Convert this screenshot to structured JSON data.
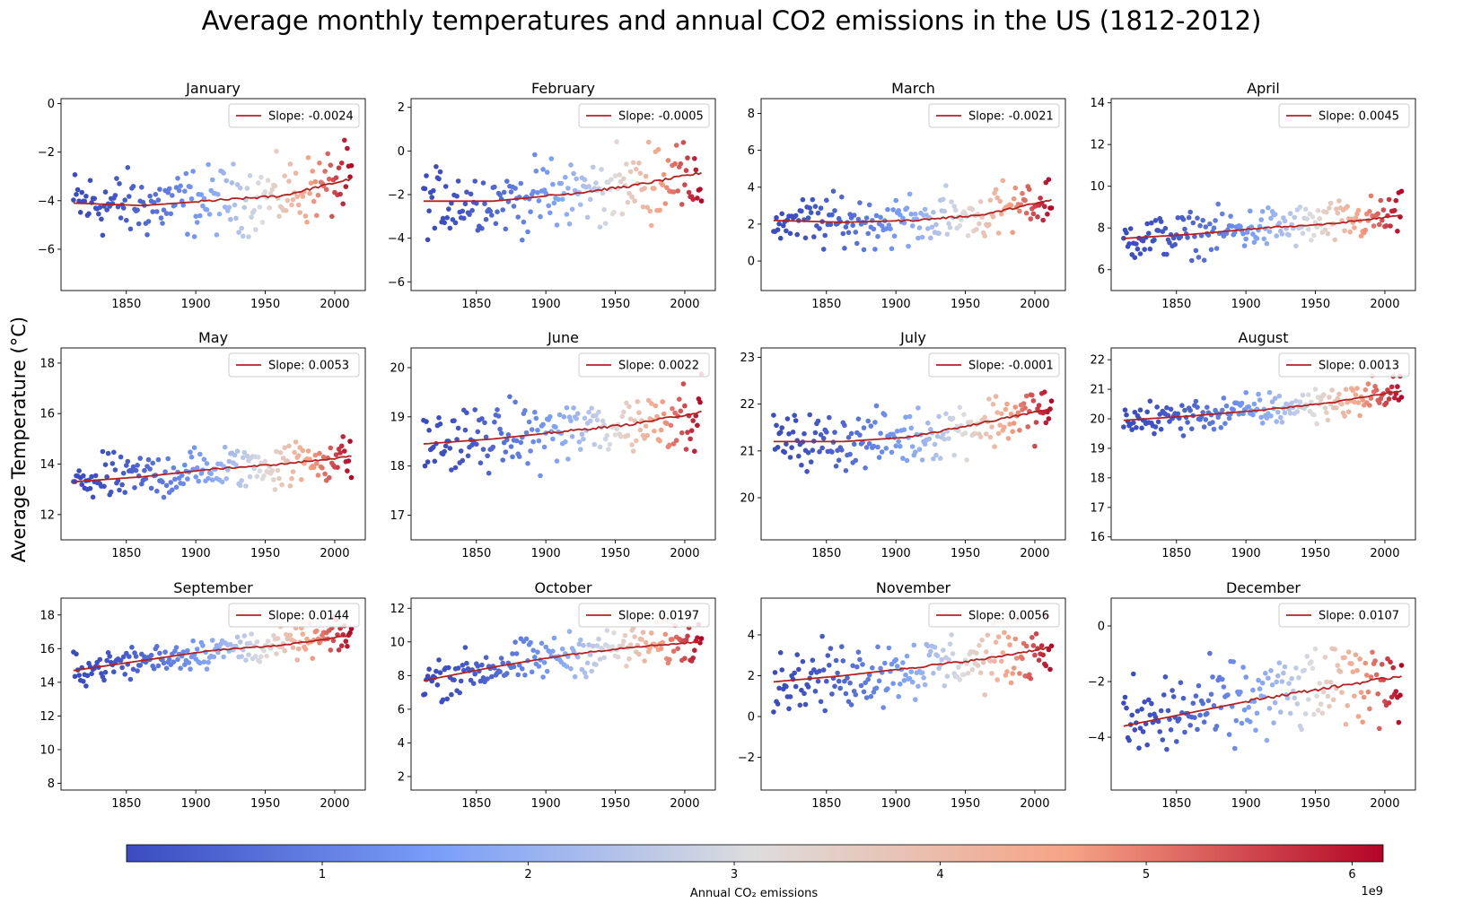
{
  "chart_data": {
    "type": "scatter",
    "title": "Average monthly temperatures and annual CO2 emissions in the US (1812-2012)",
    "ylabel": "Average Temperature ($^\\circ$C)",
    "ylabel_display": "Average Temperature (°C)",
    "x_range": [
      1812,
      2012
    ],
    "xlim": [
      1803,
      2022
    ],
    "x_ticks": [
      1850,
      1900,
      1950,
      2000
    ],
    "colorbar": {
      "label": "Annual CO₂ emissions",
      "colormap": "coolwarm",
      "range": [
        0.05,
        6.15
      ],
      "ticks": [
        1,
        2,
        3,
        4,
        5,
        6
      ],
      "tick_labels": [
        "1",
        "2",
        "3",
        "4",
        "5",
        "6"
      ],
      "scale_label": "1e9"
    },
    "trend_color": "#b22222",
    "panels": [
      {
        "month": "January",
        "slope_label": "Slope: -0.0024",
        "ylim": [
          -7.7,
          0.2
        ],
        "yticks": [
          -6,
          -4,
          -2,
          0
        ],
        "base": -4.2,
        "noise": 1.2,
        "trend": [
          -4.1,
          -4.2,
          -4.0,
          -3.8,
          -3.1
        ]
      },
      {
        "month": "February",
        "slope_label": "Slope: -0.0005",
        "ylim": [
          -6.4,
          2.4
        ],
        "yticks": [
          -6,
          -4,
          -2,
          0,
          2
        ],
        "base": -2.2,
        "noise": 1.4,
        "trend": [
          -2.3,
          -2.3,
          -2.0,
          -1.6,
          -1.0
        ]
      },
      {
        "month": "March",
        "slope_label": "Slope: -0.0021",
        "ylim": [
          -1.6,
          8.8
        ],
        "yticks": [
          0,
          2,
          4,
          6,
          8
        ],
        "base": 2.3,
        "noise": 1.2,
        "trend": [
          2.2,
          2.1,
          2.2,
          2.5,
          3.3
        ]
      },
      {
        "month": "April",
        "slope_label": "Slope: 0.0045",
        "ylim": [
          5.0,
          14.2
        ],
        "yticks": [
          6,
          8,
          10,
          12,
          14
        ],
        "base": 8.0,
        "noise": 0.9,
        "trend": [
          7.5,
          7.7,
          8.0,
          8.2,
          8.6
        ]
      },
      {
        "month": "May",
        "slope_label": "Slope: 0.0053",
        "ylim": [
          11.0,
          18.6
        ],
        "yticks": [
          12,
          14,
          16,
          18
        ],
        "base": 13.8,
        "noise": 0.8,
        "trend": [
          13.3,
          13.5,
          13.8,
          14.0,
          14.3
        ]
      },
      {
        "month": "June",
        "slope_label": "Slope: 0.0022",
        "ylim": [
          16.5,
          20.4
        ],
        "yticks": [
          17,
          18,
          19,
          20
        ],
        "base": 18.7,
        "noise": 0.55,
        "trend": [
          18.45,
          18.55,
          18.7,
          18.85,
          19.1
        ]
      },
      {
        "month": "July",
        "slope_label": "Slope: -0.0001",
        "ylim": [
          19.1,
          23.2
        ],
        "yticks": [
          20,
          21,
          22,
          23
        ],
        "base": 21.4,
        "noise": 0.5,
        "trend": [
          21.2,
          21.2,
          21.3,
          21.6,
          21.9
        ]
      },
      {
        "month": "August",
        "slope_label": "Slope: 0.0013",
        "ylim": [
          15.9,
          22.4
        ],
        "yticks": [
          16,
          17,
          18,
          19,
          20,
          21,
          22
        ],
        "base": 20.3,
        "noise": 0.5,
        "trend": [
          19.95,
          20.1,
          20.3,
          20.55,
          20.95
        ]
      },
      {
        "month": "September",
        "slope_label": "Slope: 0.0144",
        "ylim": [
          7.6,
          19.0
        ],
        "yticks": [
          8,
          10,
          12,
          14,
          16,
          18
        ],
        "base": 15.8,
        "noise": 0.8,
        "trend": [
          14.7,
          15.3,
          15.9,
          16.2,
          16.8
        ]
      },
      {
        "month": "October",
        "slope_label": "Slope: 0.0197",
        "ylim": [
          1.2,
          12.6
        ],
        "yticks": [
          2,
          4,
          6,
          8,
          10,
          12
        ],
        "base": 9.0,
        "noise": 1.1,
        "trend": [
          7.7,
          8.5,
          9.2,
          9.7,
          10.0
        ]
      },
      {
        "month": "November",
        "slope_label": "Slope: 0.0056",
        "ylim": [
          -3.6,
          5.8
        ],
        "yticks": [
          -2,
          0,
          2,
          4
        ],
        "base": 2.3,
        "noise": 1.3,
        "trend": [
          1.7,
          2.0,
          2.4,
          2.8,
          3.4
        ]
      },
      {
        "month": "December",
        "slope_label": "Slope: 0.0107",
        "ylim": [
          -5.9,
          1.0
        ],
        "yticks": [
          -4,
          -2,
          0
        ],
        "base": -2.8,
        "noise": 1.3,
        "trend": [
          -3.6,
          -3.1,
          -2.6,
          -2.2,
          -1.8
        ]
      }
    ]
  }
}
